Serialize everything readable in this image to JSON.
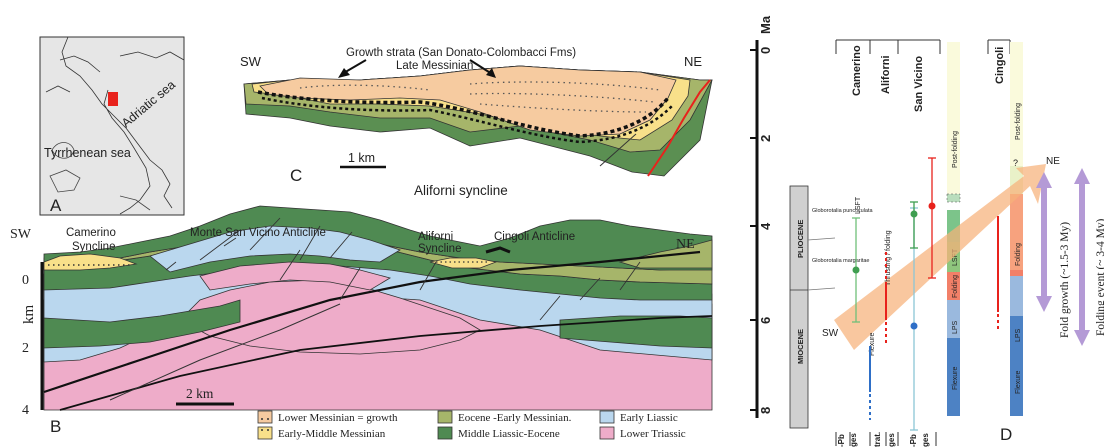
{
  "panels": {
    "a": "A",
    "b": "B",
    "c": "C",
    "d": "D"
  },
  "map": {
    "sea1": "Adriatic sea",
    "sea2": "Tyrrhenean sea"
  },
  "section_c": {
    "growth_label": "Growth strata (San Donato-Colombacci Fms)",
    "age_label": "Late Messinian",
    "sw": "SW",
    "ne": "NE",
    "scale": "1 km",
    "name": "Aliforni syncline"
  },
  "section_b": {
    "sw": "SW",
    "ne": "NE",
    "camerino": "Camerino",
    "camerino2": "Syncline",
    "vicino": "Monte San Vicino Anticline",
    "aliforni": "Aliforni",
    "aliforni2": "Syncline",
    "cingoli": "Cingoli Anticline",
    "axis_unit": "km",
    "depths": [
      "0",
      "2",
      "4"
    ],
    "scale": "2 km"
  },
  "legend": [
    {
      "label": "Lower Messinian = growth",
      "color": "#f6cba0"
    },
    {
      "label": "Early-Middle Messinian",
      "color": "#f8e08a"
    },
    {
      "label": "Eocene -Early Messinian.",
      "color": "#a6b56a"
    },
    {
      "label": "Middle Liassic-Eocene",
      "color": "#4f8a52"
    },
    {
      "label": "Early Liassic",
      "color": "#bad7ee"
    },
    {
      "label": "Lower Triassic",
      "color": "#eeacc9"
    }
  ],
  "timeline": {
    "unit": "Ma",
    "ticks": [
      "0",
      "2",
      "4",
      "6",
      "8"
    ],
    "columns": [
      "Camerino",
      "Aliforni",
      "San Vicino",
      "Cingoli"
    ],
    "epochs": [
      "PLIOCENE",
      "MIOCENE"
    ],
    "biozones": [
      "Globorotalia puncticulata",
      "Globorotalia margaritae"
    ],
    "bar_labels": {
      "post1": "Post-folding",
      "post2": "Post-folding",
      "lsft1": "LSFT",
      "fold1": "Folding",
      "lps1": "LPS",
      "flex1": "Flexure",
      "fold2": "Folding",
      "lps2": "LPS",
      "flex2": "Flexure"
    },
    "col_labels": {
      "lsft": "LSFT",
      "flexure": "Flexure",
      "thrust": "Thrusting / folding"
    },
    "sw": "SW",
    "ne": "NE",
    "q": "?",
    "bottom": [
      "-Pb",
      "ges",
      "trat.",
      "ges",
      "-Pb",
      "ges"
    ],
    "fold_growth": "Fold growth (~1.5-3 My)",
    "fold_event": "Folding event (~ 3-4 My)"
  },
  "colors": {
    "sw_red": "#e8221c",
    "arrow_orange": "#f6b27a",
    "purple": "#b49ad6"
  }
}
